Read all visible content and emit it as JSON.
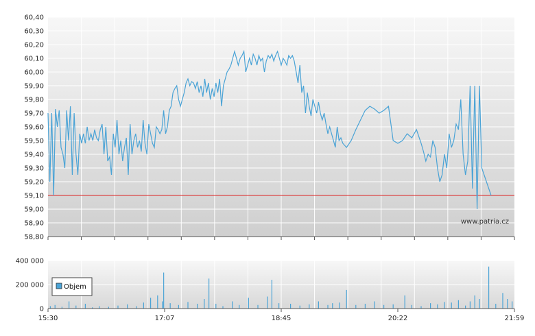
{
  "chart_data": [
    {
      "type": "line",
      "title": "",
      "xlabel": "",
      "ylabel": "",
      "ylim": [
        58.8,
        60.4
      ],
      "y_ticks": [
        "58,80",
        "58,90",
        "59,00",
        "59,10",
        "59,20",
        "59,30",
        "59,40",
        "59,50",
        "59,60",
        "59,70",
        "59,80",
        "59,90",
        "60,00",
        "60,10",
        "60,20",
        "60,30",
        "60,40"
      ],
      "reference_line": {
        "value": 59.1,
        "color": "#dd2222"
      },
      "grid": true,
      "background": "gradient light gray",
      "watermark": "www.patria.cz",
      "series": [
        {
          "color": "#4aa3d6",
          "points": [
            [
              0.0,
              59.7
            ],
            [
              0.004,
              59.2
            ],
            [
              0.008,
              59.7
            ],
            [
              0.012,
              59.1
            ],
            [
              0.016,
              59.73
            ],
            [
              0.02,
              59.6
            ],
            [
              0.024,
              59.72
            ],
            [
              0.028,
              59.45
            ],
            [
              0.032,
              59.4
            ],
            [
              0.036,
              59.3
            ],
            [
              0.04,
              59.72
            ],
            [
              0.044,
              59.5
            ],
            [
              0.048,
              59.75
            ],
            [
              0.052,
              59.25
            ],
            [
              0.056,
              59.7
            ],
            [
              0.06,
              59.4
            ],
            [
              0.064,
              59.25
            ],
            [
              0.068,
              59.55
            ],
            [
              0.072,
              59.48
            ],
            [
              0.076,
              59.55
            ],
            [
              0.08,
              59.48
            ],
            [
              0.084,
              59.6
            ],
            [
              0.088,
              59.5
            ],
            [
              0.092,
              59.55
            ],
            [
              0.096,
              59.5
            ],
            [
              0.1,
              59.58
            ],
            [
              0.104,
              59.52
            ],
            [
              0.108,
              59.5
            ],
            [
              0.112,
              59.58
            ],
            [
              0.116,
              59.62
            ],
            [
              0.12,
              59.4
            ],
            [
              0.124,
              59.6
            ],
            [
              0.128,
              59.35
            ],
            [
              0.132,
              59.38
            ],
            [
              0.136,
              59.25
            ],
            [
              0.14,
              59.55
            ],
            [
              0.144,
              59.45
            ],
            [
              0.148,
              59.65
            ],
            [
              0.152,
              59.4
            ],
            [
              0.156,
              59.5
            ],
            [
              0.16,
              59.35
            ],
            [
              0.164,
              59.45
            ],
            [
              0.168,
              59.52
            ],
            [
              0.172,
              59.25
            ],
            [
              0.176,
              59.62
            ],
            [
              0.18,
              59.4
            ],
            [
              0.184,
              59.5
            ],
            [
              0.188,
              59.55
            ],
            [
              0.192,
              59.45
            ],
            [
              0.196,
              59.5
            ],
            [
              0.2,
              59.42
            ],
            [
              0.204,
              59.65
            ],
            [
              0.208,
              59.48
            ],
            [
              0.212,
              59.4
            ],
            [
              0.216,
              59.62
            ],
            [
              0.22,
              59.55
            ],
            [
              0.224,
              59.48
            ],
            [
              0.228,
              59.45
            ],
            [
              0.232,
              59.6
            ],
            [
              0.236,
              59.58
            ],
            [
              0.24,
              59.55
            ],
            [
              0.244,
              59.58
            ],
            [
              0.248,
              59.72
            ],
            [
              0.252,
              59.55
            ],
            [
              0.256,
              59.6
            ],
            [
              0.26,
              59.72
            ],
            [
              0.264,
              59.75
            ],
            [
              0.268,
              59.85
            ],
            [
              0.272,
              59.88
            ],
            [
              0.276,
              59.9
            ],
            [
              0.28,
              59.8
            ],
            [
              0.284,
              59.75
            ],
            [
              0.288,
              59.8
            ],
            [
              0.292,
              59.85
            ],
            [
              0.296,
              59.92
            ],
            [
              0.3,
              59.95
            ],
            [
              0.304,
              59.9
            ],
            [
              0.308,
              59.93
            ],
            [
              0.312,
              59.92
            ],
            [
              0.316,
              59.88
            ],
            [
              0.32,
              59.93
            ],
            [
              0.324,
              59.85
            ],
            [
              0.328,
              59.9
            ],
            [
              0.332,
              59.82
            ],
            [
              0.336,
              59.95
            ],
            [
              0.34,
              59.85
            ],
            [
              0.344,
              59.92
            ],
            [
              0.348,
              59.8
            ],
            [
              0.352,
              59.88
            ],
            [
              0.356,
              59.82
            ],
            [
              0.36,
              59.92
            ],
            [
              0.364,
              59.85
            ],
            [
              0.368,
              59.95
            ],
            [
              0.372,
              59.75
            ],
            [
              0.376,
              59.9
            ],
            [
              0.38,
              59.95
            ],
            [
              0.384,
              60.0
            ],
            [
              0.388,
              60.02
            ],
            [
              0.392,
              60.05
            ],
            [
              0.396,
              60.1
            ],
            [
              0.4,
              60.15
            ],
            [
              0.404,
              60.1
            ],
            [
              0.408,
              60.05
            ],
            [
              0.412,
              60.1
            ],
            [
              0.416,
              60.12
            ],
            [
              0.42,
              60.15
            ],
            [
              0.424,
              60.0
            ],
            [
              0.428,
              60.05
            ],
            [
              0.432,
              60.1
            ],
            [
              0.436,
              60.05
            ],
            [
              0.44,
              60.13
            ],
            [
              0.444,
              60.1
            ],
            [
              0.448,
              60.05
            ],
            [
              0.452,
              60.12
            ],
            [
              0.456,
              60.08
            ],
            [
              0.46,
              60.1
            ],
            [
              0.464,
              60.0
            ],
            [
              0.468,
              60.08
            ],
            [
              0.472,
              60.12
            ],
            [
              0.476,
              60.1
            ],
            [
              0.48,
              60.13
            ],
            [
              0.484,
              60.08
            ],
            [
              0.488,
              60.12
            ],
            [
              0.492,
              60.15
            ],
            [
              0.496,
              60.1
            ],
            [
              0.5,
              60.05
            ],
            [
              0.504,
              60.1
            ],
            [
              0.508,
              60.08
            ],
            [
              0.512,
              60.05
            ],
            [
              0.516,
              60.12
            ],
            [
              0.52,
              60.1
            ],
            [
              0.524,
              60.12
            ],
            [
              0.528,
              60.08
            ],
            [
              0.532,
              60.0
            ],
            [
              0.536,
              59.92
            ],
            [
              0.54,
              60.05
            ],
            [
              0.544,
              59.85
            ],
            [
              0.548,
              59.9
            ],
            [
              0.552,
              59.7
            ],
            [
              0.556,
              59.85
            ],
            [
              0.56,
              59.75
            ],
            [
              0.564,
              59.68
            ],
            [
              0.568,
              59.8
            ],
            [
              0.572,
              59.75
            ],
            [
              0.576,
              59.7
            ],
            [
              0.58,
              59.78
            ],
            [
              0.584,
              59.7
            ],
            [
              0.588,
              59.65
            ],
            [
              0.592,
              59.7
            ],
            [
              0.596,
              59.62
            ],
            [
              0.6,
              59.55
            ],
            [
              0.604,
              59.6
            ],
            [
              0.608,
              59.55
            ],
            [
              0.612,
              59.5
            ],
            [
              0.616,
              59.45
            ],
            [
              0.62,
              59.6
            ],
            [
              0.624,
              59.5
            ],
            [
              0.628,
              59.52
            ],
            [
              0.632,
              59.48
            ],
            [
              0.64,
              59.45
            ],
            [
              0.65,
              59.5
            ],
            [
              0.66,
              59.58
            ],
            [
              0.67,
              59.65
            ],
            [
              0.68,
              59.72
            ],
            [
              0.69,
              59.75
            ],
            [
              0.7,
              59.73
            ],
            [
              0.71,
              59.7
            ],
            [
              0.72,
              59.72
            ],
            [
              0.73,
              59.75
            ],
            [
              0.74,
              59.5
            ],
            [
              0.75,
              59.48
            ],
            [
              0.76,
              59.5
            ],
            [
              0.77,
              59.55
            ],
            [
              0.78,
              59.52
            ],
            [
              0.79,
              59.58
            ],
            [
              0.8,
              59.48
            ],
            [
              0.805,
              59.42
            ],
            [
              0.81,
              59.35
            ],
            [
              0.815,
              59.4
            ],
            [
              0.82,
              59.38
            ],
            [
              0.825,
              59.5
            ],
            [
              0.83,
              59.45
            ],
            [
              0.835,
              59.3
            ],
            [
              0.84,
              59.2
            ],
            [
              0.845,
              59.25
            ],
            [
              0.85,
              59.4
            ],
            [
              0.855,
              59.3
            ],
            [
              0.86,
              59.55
            ],
            [
              0.865,
              59.45
            ],
            [
              0.87,
              59.5
            ],
            [
              0.875,
              59.62
            ],
            [
              0.88,
              59.58
            ],
            [
              0.885,
              59.8
            ],
            [
              0.89,
              59.4
            ],
            [
              0.895,
              59.25
            ],
            [
              0.9,
              59.35
            ],
            [
              0.905,
              59.9
            ],
            [
              0.91,
              59.15
            ],
            [
              0.915,
              59.9
            ],
            [
              0.92,
              59.0
            ],
            [
              0.925,
              59.9
            ],
            [
              0.93,
              59.3
            ],
            [
              0.935,
              59.25
            ],
            [
              0.94,
              59.2
            ],
            [
              0.945,
              59.15
            ],
            [
              0.95,
              59.1
            ]
          ]
        }
      ]
    },
    {
      "type": "bar",
      "title": "",
      "ylim": [
        0,
        400000
      ],
      "y_ticks": [
        "0",
        "200 000",
        "400 000"
      ],
      "x_ticks": [
        "15:30",
        "17:07",
        "18:45",
        "20:22",
        "21:59"
      ],
      "legend": {
        "label": "Objem",
        "placement": "left"
      },
      "grid": true,
      "series": [
        {
          "name": "Objem",
          "color": "#4aa3d6",
          "points": [
            [
              0.005,
              20000
            ],
            [
              0.015,
              30000
            ],
            [
              0.03,
              15000
            ],
            [
              0.045,
              60000
            ],
            [
              0.06,
              25000
            ],
            [
              0.08,
              40000
            ],
            [
              0.095,
              10000
            ],
            [
              0.11,
              20000
            ],
            [
              0.13,
              15000
            ],
            [
              0.15,
              25000
            ],
            [
              0.17,
              35000
            ],
            [
              0.19,
              20000
            ],
            [
              0.205,
              50000
            ],
            [
              0.22,
              90000
            ],
            [
              0.235,
              110000
            ],
            [
              0.245,
              60000
            ],
            [
              0.248,
              300000
            ],
            [
              0.262,
              45000
            ],
            [
              0.28,
              30000
            ],
            [
              0.3,
              55000
            ],
            [
              0.32,
              40000
            ],
            [
              0.335,
              80000
            ],
            [
              0.345,
              250000
            ],
            [
              0.36,
              40000
            ],
            [
              0.375,
              20000
            ],
            [
              0.395,
              60000
            ],
            [
              0.41,
              30000
            ],
            [
              0.43,
              90000
            ],
            [
              0.45,
              30000
            ],
            [
              0.47,
              100000
            ],
            [
              0.48,
              240000
            ],
            [
              0.495,
              45000
            ],
            [
              0.52,
              40000
            ],
            [
              0.54,
              25000
            ],
            [
              0.56,
              35000
            ],
            [
              0.58,
              60000
            ],
            [
              0.6,
              30000
            ],
            [
              0.61,
              45000
            ],
            [
              0.625,
              50000
            ],
            [
              0.64,
              155000
            ],
            [
              0.66,
              30000
            ],
            [
              0.68,
              40000
            ],
            [
              0.7,
              60000
            ],
            [
              0.72,
              30000
            ],
            [
              0.74,
              35000
            ],
            [
              0.765,
              110000
            ],
            [
              0.78,
              30000
            ],
            [
              0.8,
              20000
            ],
            [
              0.82,
              45000
            ],
            [
              0.835,
              35000
            ],
            [
              0.85,
              55000
            ],
            [
              0.865,
              50000
            ],
            [
              0.88,
              70000
            ],
            [
              0.895,
              25000
            ],
            [
              0.905,
              60000
            ],
            [
              0.915,
              110000
            ],
            [
              0.925,
              80000
            ],
            [
              0.945,
              350000
            ],
            [
              0.96,
              40000
            ],
            [
              0.975,
              130000
            ],
            [
              0.985,
              80000
            ],
            [
              0.995,
              60000
            ]
          ]
        }
      ]
    }
  ]
}
